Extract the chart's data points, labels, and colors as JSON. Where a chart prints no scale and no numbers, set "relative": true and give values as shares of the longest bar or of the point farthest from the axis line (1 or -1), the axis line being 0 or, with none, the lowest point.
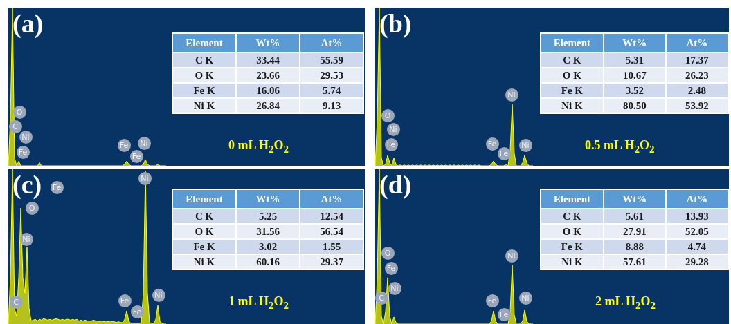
{
  "chart_data": [
    {
      "type": "area",
      "title": "(a)",
      "relative": true,
      "categories": [
        null,
        null,
        null,
        null,
        null,
        null,
        null,
        null,
        null,
        null,
        null,
        null,
        null,
        null,
        null,
        null,
        null,
        null,
        null,
        null,
        null,
        null,
        null,
        null,
        null,
        null,
        null,
        null,
        null,
        null,
        null,
        null,
        null,
        null,
        null,
        null,
        null,
        null,
        null,
        null,
        null,
        null,
        null,
        null,
        null,
        null,
        null,
        null,
        null,
        null,
        null,
        null,
        null,
        null,
        null,
        null,
        null,
        null,
        null,
        null,
        null,
        null,
        null,
        null,
        null,
        null,
        null,
        null,
        null,
        null,
        null,
        null,
        null,
        null,
        null,
        null,
        null
      ],
      "series": [
        {
          "color": "#ffff00",
          "values": [
            0,
            0.3,
            1,
            0.05,
            0,
            0.03,
            0,
            0,
            0,
            0,
            0,
            0,
            0,
            0,
            0,
            0.02,
            0,
            0,
            0,
            0,
            0,
            0,
            0,
            0,
            0,
            0,
            0,
            0,
            0,
            0,
            0,
            0,
            0,
            0,
            0,
            0,
            0,
            0,
            0,
            0,
            0,
            0,
            0,
            0,
            0,
            0,
            0,
            0,
            0,
            0,
            0,
            0,
            0,
            0,
            0,
            0,
            0.01,
            0.03,
            0.01,
            0,
            0,
            0,
            0,
            0,
            0,
            0.01,
            0.04,
            0.01,
            0,
            0,
            0,
            0,
            0.01,
            0,
            0,
            0,
            0
          ]
        }
      ],
      "annotations": [
        "O",
        "C",
        "Ni",
        "Fe",
        "Fe",
        "Ni",
        "Fe",
        "0 mL H$_{2}$O$_{2}$"
      ]
    },
    {
      "type": "heatmap",
      "data_labels": true,
      "ylabel": "Element",
      "categories": [
        "Wt%",
        "At%"
      ],
      "y_categories": [
        "C K",
        "O K",
        "Fe K",
        "Ni K"
      ],
      "cells": [
        [
          33.44,
          55.59
        ],
        [
          23.66,
          29.53
        ],
        [
          16.06,
          5.74
        ],
        [
          26.84,
          9.13
        ]
      ]
    },
    {
      "type": "area",
      "title": "(b)",
      "relative": true,
      "categories": [
        null,
        null,
        null,
        null,
        null,
        null,
        null,
        null,
        null,
        null,
        null,
        null,
        null,
        null,
        null,
        null,
        null,
        null,
        null,
        null,
        null,
        null,
        null,
        null,
        null,
        null,
        null,
        null,
        null,
        null,
        null,
        null,
        null,
        null,
        null,
        null,
        null,
        null,
        null,
        null,
        null,
        null,
        null,
        null,
        null,
        null,
        null,
        null,
        null,
        null,
        null,
        null,
        null,
        null,
        null,
        null,
        null,
        null,
        null,
        null,
        null,
        null,
        null,
        null,
        null,
        null,
        null,
        null,
        null,
        null,
        null,
        null,
        null,
        null,
        null,
        null,
        null
      ],
      "series": [
        {
          "color": "#ffff00",
          "values": [
            0,
            0.3,
            1,
            0.05,
            0,
            0.01,
            0.066,
            0.02,
            0,
            0.05,
            0.01,
            0,
            0.005,
            0,
            0.005,
            0,
            0.005,
            0,
            0.005,
            0,
            0.005,
            0,
            0.005,
            0,
            0.005,
            0,
            0.005,
            0,
            0.005,
            0,
            0.005,
            0,
            0.005,
            0,
            0.005,
            0,
            0.005,
            0,
            0.005,
            0,
            0.005,
            0,
            0.005,
            0,
            0.005,
            0,
            0.005,
            0,
            0.005,
            0,
            0.005,
            0,
            0,
            0,
            0,
            0,
            0.01,
            0.03,
            0.01,
            0,
            0,
            0,
            0,
            0.01,
            0,
            0.1,
            0.39,
            0.08,
            0,
            0,
            0,
            0.02,
            0.066,
            0.02,
            0,
            0,
            0
          ]
        }
      ],
      "annotations": [
        "O",
        "Ni",
        "Fe",
        "Fe",
        "Fe",
        "Ni",
        "Ni",
        "0.5 mL H$_{2}$O$_{2}$"
      ]
    },
    {
      "type": "heatmap",
      "data_labels": true,
      "ylabel": "Element",
      "categories": [
        "Wt%",
        "At%"
      ],
      "y_categories": [
        "C K",
        "O K",
        "Fe K",
        "Ni K"
      ],
      "cells": [
        [
          5.31,
          17.37
        ],
        [
          10.67,
          26.23
        ],
        [
          3.52,
          2.48
        ],
        [
          80.5,
          53.92
        ]
      ],
      "cell_labels": [
        [
          "5.31",
          "17.37"
        ],
        [
          "10.67",
          "26.23"
        ],
        [
          "3.52",
          "2.48"
        ],
        [
          "80.50",
          "53.92"
        ]
      ]
    },
    {
      "type": "area",
      "title": "(c)",
      "relative": true,
      "categories": [
        null,
        null,
        null,
        null,
        null,
        null,
        null,
        null,
        null,
        null,
        null,
        null,
        null,
        null,
        null,
        null,
        null,
        null,
        null,
        null,
        null,
        null,
        null,
        null,
        null,
        null,
        null,
        null,
        null,
        null,
        null,
        null,
        null,
        null,
        null,
        null,
        null,
        null,
        null,
        null,
        null,
        null,
        null,
        null,
        null,
        null,
        null,
        null,
        null,
        null,
        null,
        null,
        null,
        null,
        null,
        null,
        null,
        null,
        null,
        null,
        null,
        null,
        null,
        null,
        null,
        null,
        null,
        null,
        null,
        null,
        null,
        null,
        null,
        null,
        null,
        null,
        null
      ],
      "series": [
        {
          "color": "#ffff00",
          "values": [
            0,
            0.3,
            1,
            0.1,
            0.05,
            0.3,
            0.75,
            0.3,
            0.2,
            0.5,
            0.1,
            0.02,
            0.025,
            0.03,
            0.02,
            0.03,
            0.025,
            0.035,
            0.03,
            0.025,
            0.03,
            0.025,
            0.03,
            0.035,
            0.03,
            0.025,
            0.03,
            0.025,
            0.03,
            0.03,
            0.025,
            0.03,
            0.025,
            0.03,
            0.02,
            0.025,
            0.02,
            0.025,
            0.02,
            0.02,
            0.02,
            0.025,
            0.02,
            0.02,
            0.015,
            0.02,
            0.015,
            0.02,
            0.015,
            0.02,
            0.015,
            0.015,
            0.01,
            0.015,
            0.01,
            0.01,
            0.03,
            0.085,
            0.02,
            0.005,
            0.005,
            0.005,
            0.005,
            0.005,
            0.01,
            0.2,
            0.99,
            0.2,
            0.01,
            0.005,
            0.005,
            0.03,
            0.12,
            0.02,
            0.005,
            0,
            0
          ]
        }
      ],
      "annotations": [
        "Fe",
        "O",
        "Ni",
        "C",
        "Fe",
        "Fe",
        "Ni",
        "Ni",
        "1 mL H$_{2}$O$_{2}$"
      ]
    },
    {
      "type": "heatmap",
      "data_labels": true,
      "ylabel": "Element",
      "categories": [
        "Wt%",
        "At%"
      ],
      "y_categories": [
        "C K",
        "O K",
        "Fe K",
        "Ni K"
      ],
      "cells": [
        [
          5.25,
          12.54
        ],
        [
          31.56,
          56.54
        ],
        [
          3.02,
          1.55
        ],
        [
          60.16,
          29.37
        ]
      ]
    },
    {
      "type": "area",
      "title": "(d)",
      "relative": true,
      "categories": [
        null,
        null,
        null,
        null,
        null,
        null,
        null,
        null,
        null,
        null,
        null,
        null,
        null,
        null,
        null,
        null,
        null,
        null,
        null,
        null,
        null,
        null,
        null,
        null,
        null,
        null,
        null,
        null,
        null,
        null,
        null,
        null,
        null,
        null,
        null,
        null,
        null,
        null,
        null,
        null,
        null,
        null,
        null,
        null,
        null,
        null,
        null,
        null,
        null,
        null,
        null,
        null,
        null,
        null,
        null,
        null,
        null,
        null,
        null,
        null,
        null,
        null,
        null,
        null,
        null,
        null,
        null,
        null,
        null,
        null,
        null,
        null,
        null,
        null,
        null,
        null,
        null
      ],
      "series": [
        {
          "color": "#ffff00",
          "values": [
            0,
            0.3,
            1,
            0.05,
            0,
            0.08,
            0.3,
            0.05,
            0,
            0.045,
            0.01,
            0,
            0,
            0,
            0,
            0,
            0,
            0,
            0,
            0,
            0,
            0,
            0,
            0,
            0,
            0,
            0,
            0,
            0,
            0,
            0,
            0,
            0,
            0,
            0,
            0,
            0,
            0,
            0,
            0,
            0,
            0,
            0,
            0,
            0,
            0,
            0,
            0,
            0,
            0,
            0,
            0,
            0,
            0,
            0,
            0,
            0.02,
            0.085,
            0.02,
            0,
            0,
            0,
            0,
            0,
            0,
            0.08,
            0.38,
            0.06,
            0,
            0,
            0,
            0.02,
            0.09,
            0.02,
            0,
            0,
            0
          ]
        }
      ],
      "annotations": [
        "O",
        "Fe",
        "Ni",
        "C",
        "Fe",
        "Fe",
        "Ni",
        "Ni",
        "2 mL H$_{2}$O$_{2}$"
      ]
    },
    {
      "type": "heatmap",
      "data_labels": true,
      "ylabel": "Element",
      "categories": [
        "Wt%",
        "At%"
      ],
      "y_categories": [
        "C K",
        "O K",
        "Fe K",
        "Ni K"
      ],
      "cells": [
        [
          5.61,
          13.93
        ],
        [
          27.91,
          52.05
        ],
        [
          8.88,
          4.74
        ],
        [
          57.61,
          29.28
        ]
      ]
    }
  ]
}
